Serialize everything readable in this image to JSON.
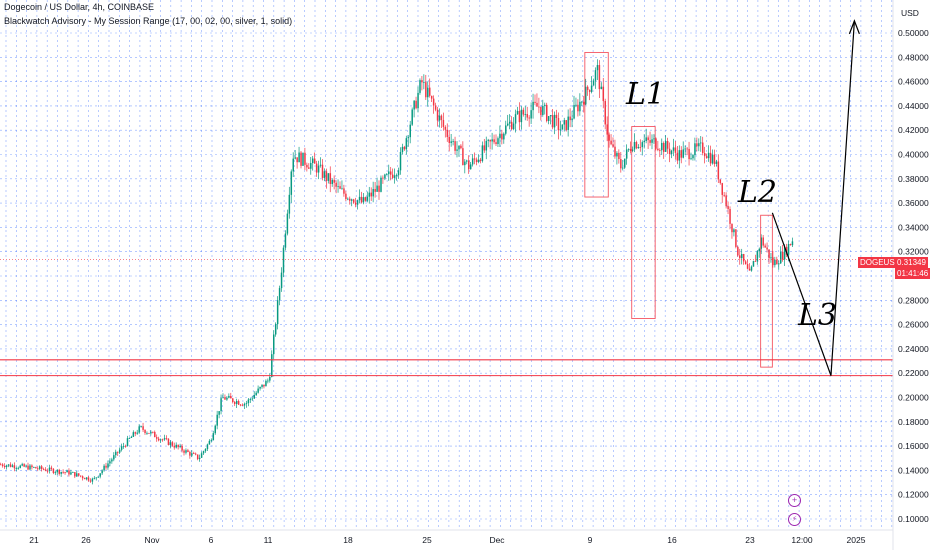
{
  "header": {
    "symbol_line": "Dogecoin / US Dollar, 4h, COINBASE",
    "indicator_line": "Blackwatch Advisory - My Session Range (17, 00, 02, 00, silver, 1, solid)"
  },
  "price_axis": {
    "currency": "USD",
    "ticks": [
      "0.50000",
      "0.48000",
      "0.46000",
      "0.44000",
      "0.42000",
      "0.40000",
      "0.38000",
      "0.36000",
      "0.34000",
      "0.32000",
      "0.30000",
      "0.28000",
      "0.26000",
      "0.24000",
      "0.22000",
      "0.20000",
      "0.18000",
      "0.16000",
      "0.14000",
      "0.12000",
      "0.10000"
    ]
  },
  "price_tag": {
    "ticker": "DOGEUSD",
    "price": "0.31349",
    "countdown": "01:41:46"
  },
  "icons": {
    "plus": "plus-circle-icon",
    "alert": "lightning-icon"
  },
  "colors": {
    "up": "#089981",
    "down": "#f23645",
    "box": "#f23645",
    "grid": "#2962ff"
  },
  "chart_data": {
    "type": "candlestick",
    "title": "Dogecoin / US Dollar, 4h, COINBASE",
    "xlabel": "",
    "ylabel": "",
    "ylim": [
      0.095,
      0.51
    ],
    "y_ticks": [
      0.1,
      0.12,
      0.14,
      0.16,
      0.18,
      0.2,
      0.22,
      0.24,
      0.26,
      0.28,
      0.3,
      0.32,
      0.34,
      0.36,
      0.38,
      0.4,
      0.42,
      0.44,
      0.46,
      0.48,
      0.5
    ],
    "x_tick_labels": [
      "21",
      "26",
      "Nov",
      "6",
      "11",
      "18",
      "25",
      "Dec",
      "9",
      "16",
      "23",
      "12:00",
      "2025"
    ],
    "grid": true,
    "last_price": 0.31349,
    "price_path_approx": [
      {
        "date": "2024-10-18",
        "close": 0.145
      },
      {
        "date": "2024-10-21",
        "close": 0.142
      },
      {
        "date": "2024-10-24",
        "close": 0.138
      },
      {
        "date": "2024-10-26",
        "close": 0.132
      },
      {
        "date": "2024-10-29",
        "close": 0.165
      },
      {
        "date": "2024-10-30",
        "close": 0.175
      },
      {
        "date": "2024-11-01",
        "close": 0.165
      },
      {
        "date": "2024-11-04",
        "close": 0.15
      },
      {
        "date": "2024-11-05",
        "close": 0.165
      },
      {
        "date": "2024-11-06",
        "close": 0.2
      },
      {
        "date": "2024-11-08",
        "close": 0.195
      },
      {
        "date": "2024-11-10",
        "close": 0.215
      },
      {
        "date": "2024-11-11",
        "close": 0.3
      },
      {
        "date": "2024-11-12",
        "close": 0.4
      },
      {
        "date": "2024-11-14",
        "close": 0.39
      },
      {
        "date": "2024-11-16",
        "close": 0.37
      },
      {
        "date": "2024-11-18",
        "close": 0.36
      },
      {
        "date": "2024-11-21",
        "close": 0.39
      },
      {
        "date": "2024-11-23",
        "close": 0.46
      },
      {
        "date": "2024-11-25",
        "close": 0.42
      },
      {
        "date": "2024-11-27",
        "close": 0.39
      },
      {
        "date": "2024-11-29",
        "close": 0.41
      },
      {
        "date": "2024-12-01",
        "close": 0.43
      },
      {
        "date": "2024-12-03",
        "close": 0.44
      },
      {
        "date": "2024-12-05",
        "close": 0.42
      },
      {
        "date": "2024-12-07",
        "close": 0.45
      },
      {
        "date": "2024-12-08",
        "close": 0.47
      },
      {
        "date": "2024-12-09",
        "close": 0.41
      },
      {
        "date": "2024-12-10",
        "close": 0.39
      },
      {
        "date": "2024-12-11",
        "close": 0.41
      },
      {
        "date": "2024-12-13",
        "close": 0.41
      },
      {
        "date": "2024-12-15",
        "close": 0.4
      },
      {
        "date": "2024-12-17",
        "close": 0.405
      },
      {
        "date": "2024-12-18",
        "close": 0.395
      },
      {
        "date": "2024-12-19",
        "close": 0.36
      },
      {
        "date": "2024-12-20",
        "close": 0.32
      },
      {
        "date": "2024-12-21",
        "close": 0.3
      },
      {
        "date": "2024-12-22",
        "close": 0.33
      },
      {
        "date": "2024-12-23",
        "close": 0.31
      },
      {
        "date": "2024-12-24",
        "close": 0.32
      },
      {
        "date": "2024-12-25",
        "close": 0.335
      },
      {
        "date": "2024-12-26",
        "close": 0.313
      }
    ],
    "horizontal_levels": [
      0.231,
      0.218
    ],
    "boxes": [
      {
        "from": "2024-12-07",
        "to": "2024-12-09",
        "low": 0.365,
        "high": 0.484
      },
      {
        "from": "2024-12-11",
        "to": "2024-12-13",
        "low": 0.265,
        "high": 0.423
      },
      {
        "from": "2024-12-22",
        "to": "2024-12-23",
        "low": 0.225,
        "high": 0.35
      }
    ],
    "drawn_path": [
      {
        "date": "2024-12-23",
        "price": 0.352
      },
      {
        "date": "2024-12-28",
        "price": 0.218
      },
      {
        "date": "2024-12-30",
        "price": 0.51
      }
    ],
    "annotations": [
      "L1",
      "L2",
      "L3"
    ]
  }
}
